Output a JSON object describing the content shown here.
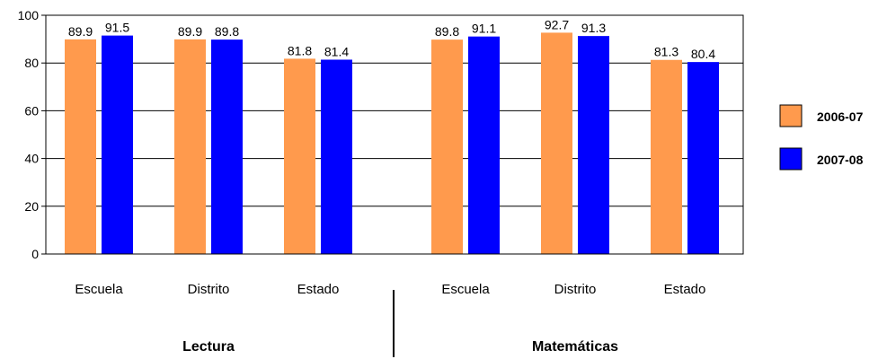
{
  "chart_data": {
    "type": "bar",
    "categories": [
      "Escuela",
      "Distrito",
      "Estado",
      "Escuela",
      "Distrito",
      "Estado"
    ],
    "groups": [
      {
        "label": "Lectura",
        "category_indices": [
          0,
          1,
          2
        ]
      },
      {
        "label": "Matemáticas",
        "category_indices": [
          3,
          4,
          5
        ]
      }
    ],
    "series": [
      {
        "name": "2006-07",
        "color": "#ff9a4d",
        "values": [
          89.9,
          89.9,
          81.8,
          89.8,
          92.7,
          81.3
        ]
      },
      {
        "name": "2007-08",
        "color": "#0000ff",
        "values": [
          91.5,
          89.8,
          81.4,
          91.1,
          91.3,
          80.4
        ]
      }
    ],
    "ylim": [
      0,
      100
    ],
    "yticks": [
      0,
      20,
      40,
      60,
      80,
      100
    ],
    "grid": true,
    "legend": "right",
    "title": "",
    "xlabel": "",
    "ylabel": ""
  }
}
